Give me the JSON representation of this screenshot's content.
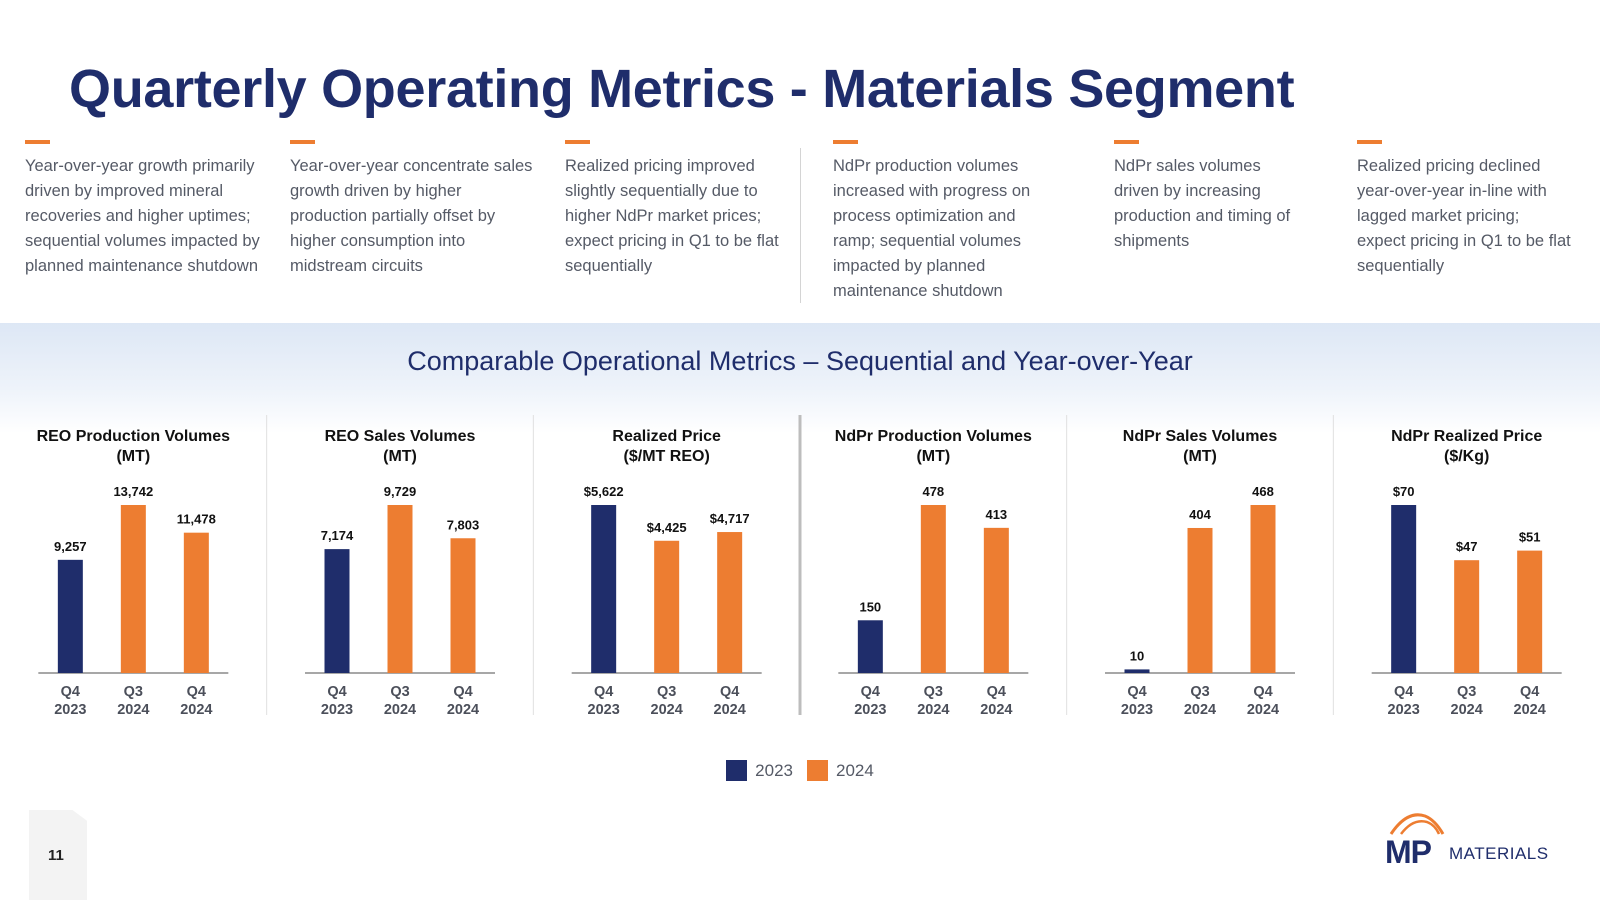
{
  "header": {
    "title": "Quarterly Operating Metrics - Materials Segment"
  },
  "notes": [
    "Year-over-year growth primarily driven by improved mineral recoveries and higher uptimes; sequential volumes impacted by planned maintenance shutdown",
    "Year-over-year concentrate sales growth driven by higher production partially offset by higher consumption into midstream circuits",
    "Realized pricing improved slightly sequentially due to higher NdPr market prices; expect pricing in Q1 to be flat sequentially",
    "NdPr production volumes increased with progress on process optimization and ramp; sequential volumes impacted by planned maintenance shutdown",
    "NdPr sales volumes driven by increasing production and timing of shipments",
    "Realized pricing declined year-over-year in-line with lagged market pricing; expect pricing in Q1 to be flat sequentially"
  ],
  "section": {
    "title": "Comparable Operational Metrics – Sequential and Year-over-Year"
  },
  "colors": {
    "series_2023": "#1f2d6b",
    "series_2024": "#ed7d31",
    "accent": "#ed7d31",
    "title": "#1f2d6b"
  },
  "chart_data": [
    {
      "type": "bar",
      "title_lines": [
        "REO Production Volumes",
        "(MT)"
      ],
      "categories": [
        [
          "Q4",
          "2023"
        ],
        [
          "Q3",
          "2024"
        ],
        [
          "Q4",
          "2024"
        ]
      ],
      "values": [
        9257,
        13742,
        11478
      ],
      "labels": [
        "9,257",
        "13,742",
        "11,478"
      ],
      "years": [
        "2023",
        "2024",
        "2024"
      ]
    },
    {
      "type": "bar",
      "title_lines": [
        "REO Sales Volumes",
        "(MT)"
      ],
      "categories": [
        [
          "Q4",
          "2023"
        ],
        [
          "Q3",
          "2024"
        ],
        [
          "Q4",
          "2024"
        ]
      ],
      "values": [
        7174,
        9729,
        7803
      ],
      "labels": [
        "7,174",
        "9,729",
        "7,803"
      ],
      "years": [
        "2023",
        "2024",
        "2024"
      ]
    },
    {
      "type": "bar",
      "title_lines": [
        "Realized Price",
        "($/MT REO)"
      ],
      "categories": [
        [
          "Q4",
          "2023"
        ],
        [
          "Q3",
          "2024"
        ],
        [
          "Q4",
          "2024"
        ]
      ],
      "values": [
        5622,
        4425,
        4717
      ],
      "labels": [
        "$5,622",
        "$4,425",
        "$4,717"
      ],
      "years": [
        "2023",
        "2024",
        "2024"
      ]
    },
    {
      "type": "bar",
      "title_lines": [
        "NdPr Production Volumes",
        "(MT)"
      ],
      "categories": [
        [
          "Q4",
          "2023"
        ],
        [
          "Q3",
          "2024"
        ],
        [
          "Q4",
          "2024"
        ]
      ],
      "values": [
        150,
        478,
        413
      ],
      "labels": [
        "150",
        "478",
        "413"
      ],
      "years": [
        "2023",
        "2024",
        "2024"
      ]
    },
    {
      "type": "bar",
      "title_lines": [
        "NdPr Sales Volumes",
        "(MT)"
      ],
      "categories": [
        [
          "Q4",
          "2023"
        ],
        [
          "Q3",
          "2024"
        ],
        [
          "Q4",
          "2024"
        ]
      ],
      "values": [
        10,
        404,
        468
      ],
      "labels": [
        "10",
        "404",
        "468"
      ],
      "years": [
        "2023",
        "2024",
        "2024"
      ]
    },
    {
      "type": "bar",
      "title_lines": [
        "NdPr Realized Price",
        "($/Kg)"
      ],
      "categories": [
        [
          "Q4",
          "2023"
        ],
        [
          "Q3",
          "2024"
        ],
        [
          "Q4",
          "2024"
        ]
      ],
      "values": [
        70,
        47,
        51
      ],
      "labels": [
        "$70",
        "$47",
        "$51"
      ],
      "years": [
        "2023",
        "2024",
        "2024"
      ]
    }
  ],
  "legend": [
    {
      "label": "2023",
      "color": "#1f2d6b"
    },
    {
      "label": "2024",
      "color": "#ed7d31"
    }
  ],
  "footer": {
    "page_number": "11",
    "logo_mp": "MP",
    "logo_word": "MATERIALS"
  }
}
